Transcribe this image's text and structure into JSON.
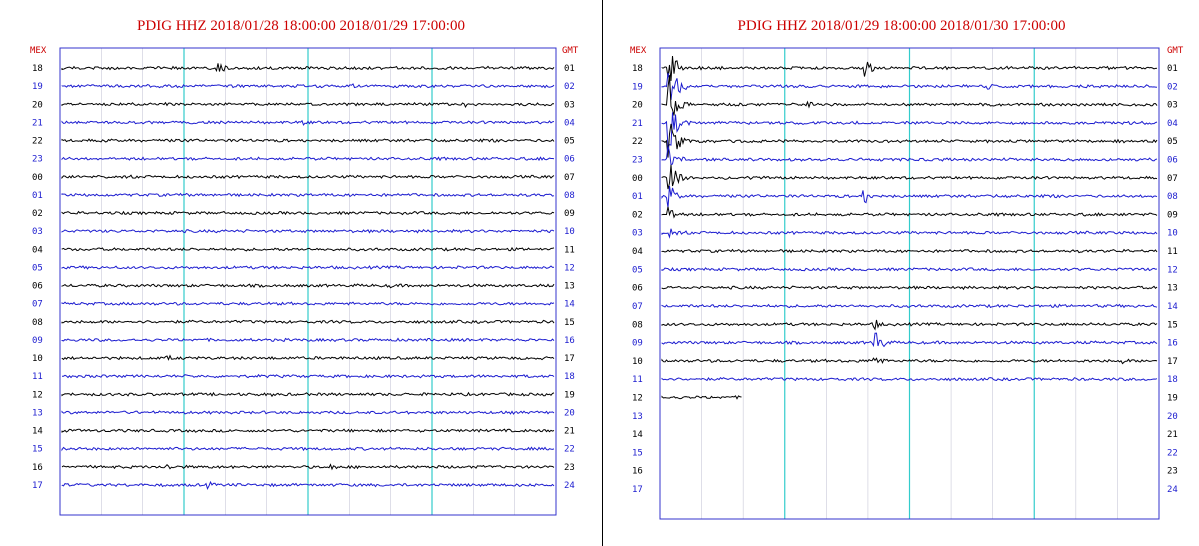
{
  "colors": {
    "title": "#cc0000",
    "trace_even": "#000000",
    "trace_odd": "#1c1ccf",
    "frame": "#3333cc",
    "hour_line": "#33cccc",
    "minor_line": "#c8c8d8"
  },
  "chart_data": [
    {
      "type": "helicorder",
      "title": "PDIG HHZ 2018/01/28 18:00:00 2018/01/29 17:00:00",
      "left_axis_header": "MEX",
      "right_axis_header": "GMT",
      "left_labels": [
        "18",
        "19",
        "20",
        "21",
        "22",
        "23",
        "00",
        "01",
        "02",
        "03",
        "04",
        "05",
        "06",
        "07",
        "08",
        "09",
        "10",
        "11",
        "12",
        "13",
        "14",
        "15",
        "16",
        "17"
      ],
      "right_labels": [
        "01",
        "02",
        "03",
        "04",
        "05",
        "06",
        "07",
        "08",
        "09",
        "10",
        "11",
        "12",
        "13",
        "14",
        "15",
        "16",
        "17",
        "18",
        "19",
        "20",
        "21",
        "22",
        "23",
        "24"
      ],
      "x_range_minutes": [
        0,
        60
      ],
      "trace_end_fraction": [
        1,
        1,
        1,
        1,
        1,
        1,
        1,
        1,
        1,
        1,
        1,
        1,
        1,
        1,
        1,
        1,
        1,
        1,
        1,
        1,
        1,
        1,
        1,
        1
      ],
      "events": [
        {
          "row": 0,
          "x_fraction": 0.32,
          "amplitude": 7
        },
        {
          "row": 1,
          "x_fraction": 0.59,
          "amplitude": 3
        },
        {
          "row": 2,
          "x_fraction": 0.82,
          "amplitude": 3
        },
        {
          "row": 3,
          "x_fraction": 0.49,
          "amplitude": 3
        },
        {
          "row": 12,
          "x_fraction": 0.67,
          "amplitude": 3
        },
        {
          "row": 16,
          "x_fraction": 0.22,
          "amplitude": 3
        },
        {
          "row": 18,
          "x_fraction": 0.43,
          "amplitude": 2
        },
        {
          "row": 22,
          "x_fraction": 0.22,
          "amplitude": 4
        },
        {
          "row": 22,
          "x_fraction": 0.55,
          "amplitude": 3
        },
        {
          "row": 23,
          "x_fraction": 0.3,
          "amplitude": 4
        }
      ]
    },
    {
      "type": "helicorder",
      "title": "PDIG HHZ 2018/01/29 18:00:00 2018/01/30 17:00:00",
      "left_axis_header": "MEX",
      "right_axis_header": "GMT",
      "left_labels": [
        "18",
        "19",
        "20",
        "21",
        "22",
        "23",
        "00",
        "01",
        "02",
        "03",
        "04",
        "05",
        "06",
        "07",
        "08",
        "09",
        "10",
        "11",
        "12",
        "13",
        "14",
        "15",
        "16",
        "17"
      ],
      "right_labels": [
        "01",
        "02",
        "03",
        "04",
        "05",
        "06",
        "07",
        "08",
        "09",
        "10",
        "11",
        "12",
        "13",
        "14",
        "15",
        "16",
        "17",
        "18",
        "19",
        "20",
        "21",
        "22",
        "23",
        "24"
      ],
      "x_range_minutes": [
        0,
        60
      ],
      "trace_end_fraction": [
        1,
        1,
        1,
        1,
        1,
        1,
        1,
        1,
        1,
        1,
        1,
        1,
        1,
        1,
        1,
        1,
        1,
        1,
        0.17,
        0,
        0,
        0,
        0,
        0
      ],
      "events": [
        {
          "row": 0,
          "x_fraction": 0.02,
          "amplitude": 20
        },
        {
          "row": 1,
          "x_fraction": 0.02,
          "amplitude": 30
        },
        {
          "row": 2,
          "x_fraction": 0.02,
          "amplitude": 30
        },
        {
          "row": 3,
          "x_fraction": 0.02,
          "amplitude": 28
        },
        {
          "row": 4,
          "x_fraction": 0.02,
          "amplitude": 24
        },
        {
          "row": 5,
          "x_fraction": 0.02,
          "amplitude": 20
        },
        {
          "row": 6,
          "x_fraction": 0.02,
          "amplitude": 16
        },
        {
          "row": 7,
          "x_fraction": 0.02,
          "amplitude": 12
        },
        {
          "row": 8,
          "x_fraction": 0.02,
          "amplitude": 10
        },
        {
          "row": 9,
          "x_fraction": 0.02,
          "amplitude": 6
        },
        {
          "row": 0,
          "x_fraction": 0.41,
          "amplitude": 10
        },
        {
          "row": 1,
          "x_fraction": 0.66,
          "amplitude": 3
        },
        {
          "row": 2,
          "x_fraction": 0.3,
          "amplitude": 3
        },
        {
          "row": 7,
          "x_fraction": 0.41,
          "amplitude": 9
        },
        {
          "row": 8,
          "x_fraction": 0.96,
          "amplitude": 3
        },
        {
          "row": 14,
          "x_fraction": 0.43,
          "amplitude": 6
        },
        {
          "row": 15,
          "x_fraction": 0.43,
          "amplitude": 16
        },
        {
          "row": 16,
          "x_fraction": 0.43,
          "amplitude": 8
        },
        {
          "row": 16,
          "x_fraction": 0.93,
          "amplitude": 3
        }
      ]
    }
  ]
}
